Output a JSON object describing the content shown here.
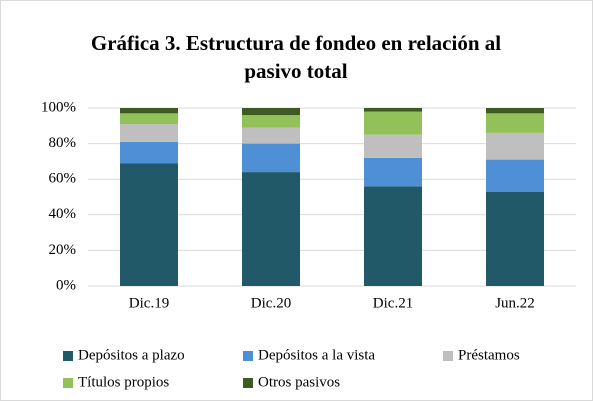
{
  "chart_data": {
    "type": "stacked_bar",
    "title": "Gráfica 3. Estructura de fondeo en relación al pasivo total",
    "categories": [
      "Dic.19",
      "Dic.20",
      "Dic.21",
      "Jun.22"
    ],
    "series": [
      {
        "name": "Depósitos a plazo",
        "color": "#215968",
        "values": [
          69,
          64,
          56,
          53
        ]
      },
      {
        "name": "Depósitos a la vista",
        "color": "#4f8fd6",
        "values": [
          12,
          16,
          16,
          18
        ]
      },
      {
        "name": "Préstamos",
        "color": "#bfbfbf",
        "values": [
          10,
          9,
          13,
          15
        ]
      },
      {
        "name": "Títulos propios",
        "color": "#92c15a",
        "values": [
          6,
          7,
          13,
          11
        ]
      },
      {
        "name": "Otros pasivos",
        "color": "#3d5a22",
        "values": [
          3,
          4,
          2,
          3
        ]
      }
    ],
    "ylim": [
      0,
      100
    ],
    "yticks": [
      {
        "value": 0,
        "label": "0%"
      },
      {
        "value": 20,
        "label": "20%"
      },
      {
        "value": 40,
        "label": "40%"
      },
      {
        "value": 60,
        "label": "60%"
      },
      {
        "value": 80,
        "label": "80%"
      },
      {
        "value": 100,
        "label": "100%"
      }
    ],
    "grid": true,
    "legend": "bottom"
  }
}
